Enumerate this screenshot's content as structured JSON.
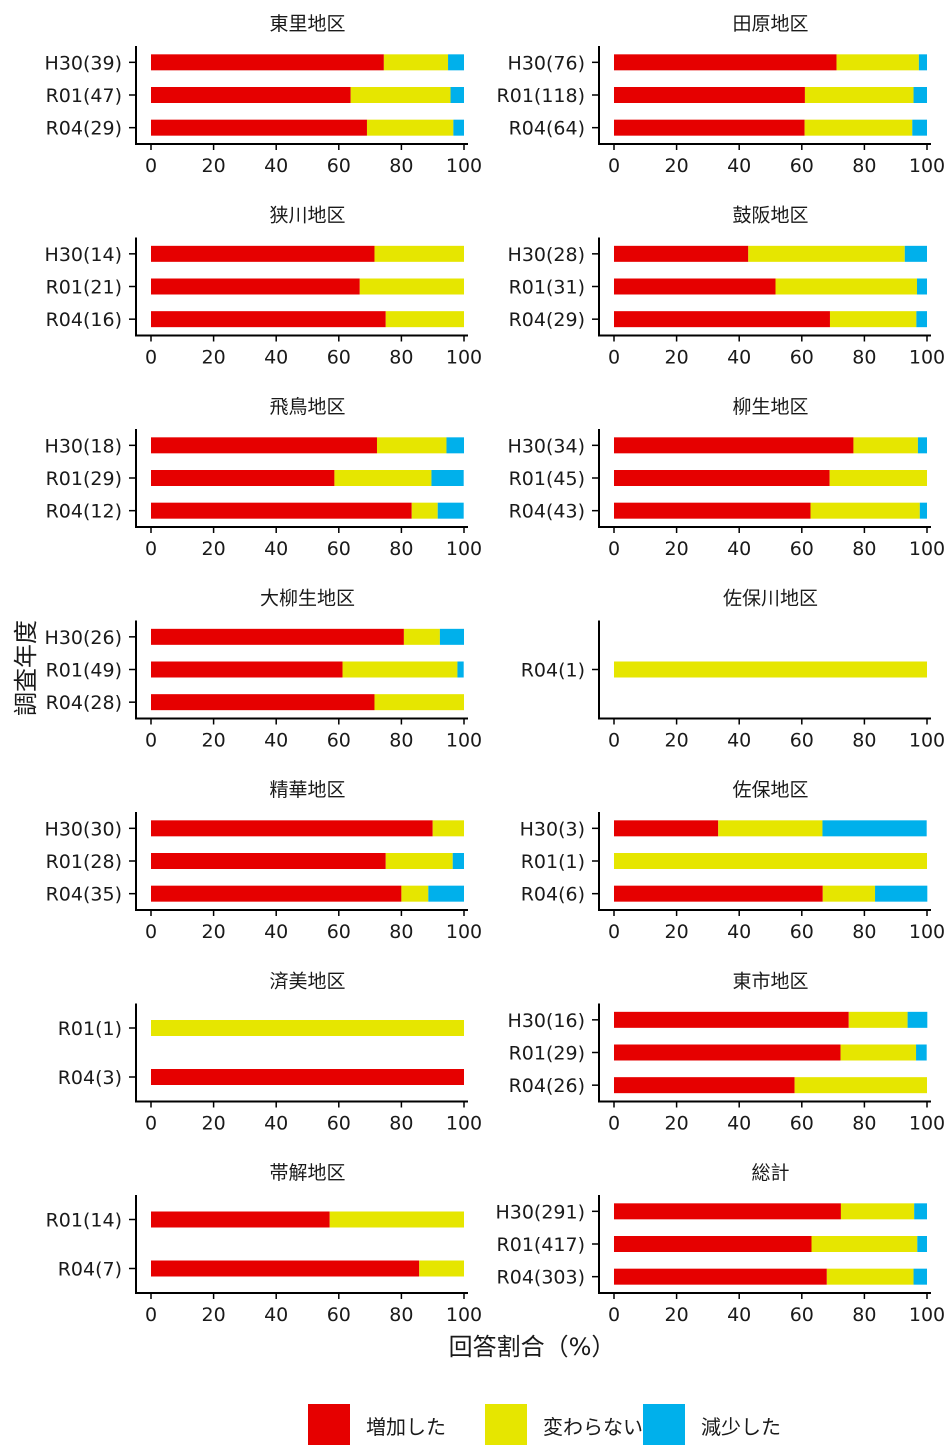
{
  "ylabel": "調査年度",
  "xlabel": "回答割合（%）",
  "legend": [
    {
      "name": "増加した",
      "color": "#e60000"
    },
    {
      "name": "変わらない",
      "color": "#e6e600"
    },
    {
      "name": "減少した",
      "color": "#00b0eb"
    }
  ],
  "legend_position": "bottom",
  "chart_data": [
    {
      "type": "bar",
      "orientation": "horizontal-stacked",
      "title": "東里地区",
      "xlim": [
        0,
        100
      ],
      "x_ticks": [
        "0",
        "20",
        "40",
        "60",
        "80",
        "100"
      ],
      "categories": [
        "H30(39)",
        "R01(47)",
        "R04(29)"
      ],
      "series": [
        {
          "name": "増加した",
          "values": [
            74.4,
            63.8,
            69.0
          ]
        },
        {
          "name": "変わらない",
          "values": [
            20.5,
            31.9,
            27.6
          ]
        },
        {
          "name": "減少した",
          "values": [
            5.1,
            4.3,
            3.4
          ]
        }
      ]
    },
    {
      "type": "bar",
      "orientation": "horizontal-stacked",
      "title": "田原地区",
      "xlim": [
        0,
        100
      ],
      "x_ticks": [
        "0",
        "20",
        "40",
        "60",
        "80",
        "100"
      ],
      "categories": [
        "H30(76)",
        "R01(118)",
        "R04(64)"
      ],
      "series": [
        {
          "name": "増加した",
          "values": [
            71.1,
            61.0,
            60.9
          ]
        },
        {
          "name": "変わらない",
          "values": [
            26.3,
            34.7,
            34.4
          ]
        },
        {
          "name": "減少した",
          "values": [
            2.6,
            4.3,
            4.7
          ]
        }
      ]
    },
    {
      "type": "bar",
      "orientation": "horizontal-stacked",
      "title": "狭川地区",
      "xlim": [
        0,
        100
      ],
      "x_ticks": [
        "0",
        "20",
        "40",
        "60",
        "80",
        "100"
      ],
      "categories": [
        "H30(14)",
        "R01(21)",
        "R04(16)"
      ],
      "series": [
        {
          "name": "増加した",
          "values": [
            71.4,
            66.7,
            75.0
          ]
        },
        {
          "name": "変わらない",
          "values": [
            28.6,
            33.3,
            25.0
          ]
        },
        {
          "name": "減少した",
          "values": [
            0,
            0,
            0
          ]
        }
      ]
    },
    {
      "type": "bar",
      "orientation": "horizontal-stacked",
      "title": "鼓阪地区",
      "xlim": [
        0,
        100
      ],
      "x_ticks": [
        "0",
        "20",
        "40",
        "60",
        "80",
        "100"
      ],
      "categories": [
        "H30(28)",
        "R01(31)",
        "R04(29)"
      ],
      "series": [
        {
          "name": "増加した",
          "values": [
            42.9,
            51.6,
            69.0
          ]
        },
        {
          "name": "変わらない",
          "values": [
            50.0,
            45.2,
            27.6
          ]
        },
        {
          "name": "減少した",
          "values": [
            7.1,
            3.2,
            3.4
          ]
        }
      ]
    },
    {
      "type": "bar",
      "orientation": "horizontal-stacked",
      "title": "飛鳥地区",
      "xlim": [
        0,
        100
      ],
      "x_ticks": [
        "0",
        "20",
        "40",
        "60",
        "80",
        "100"
      ],
      "categories": [
        "H30(18)",
        "R01(29)",
        "R04(12)"
      ],
      "series": [
        {
          "name": "増加した",
          "values": [
            72.2,
            58.6,
            83.3
          ]
        },
        {
          "name": "変わらない",
          "values": [
            22.2,
            31.0,
            8.3
          ]
        },
        {
          "name": "減少した",
          "values": [
            5.6,
            10.3,
            8.3
          ]
        }
      ]
    },
    {
      "type": "bar",
      "orientation": "horizontal-stacked",
      "title": "柳生地区",
      "xlim": [
        0,
        100
      ],
      "x_ticks": [
        "0",
        "20",
        "40",
        "60",
        "80",
        "100"
      ],
      "categories": [
        "H30(34)",
        "R01(45)",
        "R04(43)"
      ],
      "series": [
        {
          "name": "増加した",
          "values": [
            76.5,
            68.9,
            62.8
          ]
        },
        {
          "name": "変わらない",
          "values": [
            20.6,
            31.1,
            34.9
          ]
        },
        {
          "name": "減少した",
          "values": [
            2.9,
            0,
            2.3
          ]
        }
      ]
    },
    {
      "type": "bar",
      "orientation": "horizontal-stacked",
      "title": "大柳生地区",
      "xlim": [
        0,
        100
      ],
      "x_ticks": [
        "0",
        "20",
        "40",
        "60",
        "80",
        "100"
      ],
      "categories": [
        "H30(26)",
        "R01(49)",
        "R04(28)"
      ],
      "series": [
        {
          "name": "増加した",
          "values": [
            80.8,
            61.2,
            71.4
          ]
        },
        {
          "name": "変わらない",
          "values": [
            11.5,
            36.7,
            28.6
          ]
        },
        {
          "name": "減少した",
          "values": [
            7.7,
            2.0,
            0
          ]
        }
      ]
    },
    {
      "type": "bar",
      "orientation": "horizontal-stacked",
      "title": "佐保川地区",
      "xlim": [
        0,
        100
      ],
      "x_ticks": [
        "0",
        "20",
        "40",
        "60",
        "80",
        "100"
      ],
      "categories": [
        "R04(1)"
      ],
      "series": [
        {
          "name": "増加した",
          "values": [
            0
          ]
        },
        {
          "name": "変わらない",
          "values": [
            100
          ]
        },
        {
          "name": "減少した",
          "values": [
            0
          ]
        }
      ]
    },
    {
      "type": "bar",
      "orientation": "horizontal-stacked",
      "title": "精華地区",
      "xlim": [
        0,
        100
      ],
      "x_ticks": [
        "0",
        "20",
        "40",
        "60",
        "80",
        "100"
      ],
      "categories": [
        "H30(30)",
        "R01(28)",
        "R04(35)"
      ],
      "series": [
        {
          "name": "増加した",
          "values": [
            90.0,
            75.0,
            80.0
          ]
        },
        {
          "name": "変わらない",
          "values": [
            10.0,
            21.4,
            8.6
          ]
        },
        {
          "name": "減少した",
          "values": [
            0,
            3.6,
            11.4
          ]
        }
      ]
    },
    {
      "type": "bar",
      "orientation": "horizontal-stacked",
      "title": "佐保地区",
      "xlim": [
        0,
        100
      ],
      "x_ticks": [
        "0",
        "20",
        "40",
        "60",
        "80",
        "100"
      ],
      "categories": [
        "H30(3)",
        "R01(1)",
        "R04(6)"
      ],
      "series": [
        {
          "name": "増加した",
          "values": [
            33.3,
            0,
            66.7
          ]
        },
        {
          "name": "変わらない",
          "values": [
            33.3,
            100,
            16.7
          ]
        },
        {
          "name": "減少した",
          "values": [
            33.3,
            0,
            16.7
          ]
        }
      ]
    },
    {
      "type": "bar",
      "orientation": "horizontal-stacked",
      "title": "済美地区",
      "xlim": [
        0,
        100
      ],
      "x_ticks": [
        "0",
        "20",
        "40",
        "60",
        "80",
        "100"
      ],
      "categories": [
        "R01(1)",
        "R04(3)"
      ],
      "series": [
        {
          "name": "増加した",
          "values": [
            0,
            100
          ]
        },
        {
          "name": "変わらない",
          "values": [
            100,
            0
          ]
        },
        {
          "name": "減少した",
          "values": [
            0,
            0
          ]
        }
      ]
    },
    {
      "type": "bar",
      "orientation": "horizontal-stacked",
      "title": "東市地区",
      "xlim": [
        0,
        100
      ],
      "x_ticks": [
        "0",
        "20",
        "40",
        "60",
        "80",
        "100"
      ],
      "categories": [
        "H30(16)",
        "R01(29)",
        "R04(26)"
      ],
      "series": [
        {
          "name": "増加した",
          "values": [
            75.0,
            72.4,
            57.7
          ]
        },
        {
          "name": "変わらない",
          "values": [
            18.8,
            24.1,
            42.3
          ]
        },
        {
          "name": "減少した",
          "values": [
            6.3,
            3.4,
            0
          ]
        }
      ]
    },
    {
      "type": "bar",
      "orientation": "horizontal-stacked",
      "title": "帯解地区",
      "xlim": [
        0,
        100
      ],
      "x_ticks": [
        "0",
        "20",
        "40",
        "60",
        "80",
        "100"
      ],
      "categories": [
        "R01(14)",
        "R04(7)"
      ],
      "series": [
        {
          "name": "増加した",
          "values": [
            57.1,
            85.7
          ]
        },
        {
          "name": "変わらない",
          "values": [
            42.9,
            14.3
          ]
        },
        {
          "name": "減少した",
          "values": [
            0,
            0
          ]
        }
      ]
    },
    {
      "type": "bar",
      "orientation": "horizontal-stacked",
      "title": "総計",
      "xlim": [
        0,
        100
      ],
      "x_ticks": [
        "0",
        "20",
        "40",
        "60",
        "80",
        "100"
      ],
      "categories": [
        "H30(291)",
        "R01(417)",
        "R04(303)"
      ],
      "series": [
        {
          "name": "増加した",
          "values": [
            72.5,
            63.1,
            68.0
          ]
        },
        {
          "name": "変わらない",
          "values": [
            23.4,
            33.8,
            27.7
          ]
        },
        {
          "name": "減少した",
          "values": [
            4.1,
            3.1,
            4.3
          ]
        }
      ]
    }
  ]
}
